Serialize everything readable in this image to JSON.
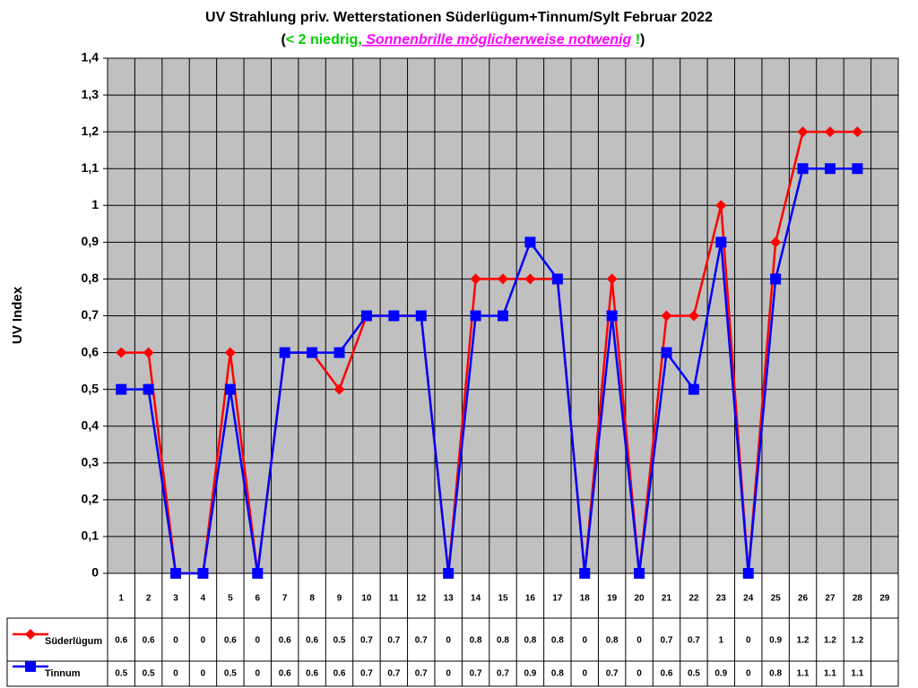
{
  "chart_data": {
    "type": "line",
    "title": "UV Strahlung priv. Wetterstationen Süderlügum+Tinnum/Sylt Februar 2022",
    "subtitle": [
      "(",
      "< 2 niedrig,",
      " Sonnenbrille möglicherweise notwenig",
      " !",
      ")"
    ],
    "y_label": "UV Index",
    "categories": [
      "1",
      "2",
      "3",
      "4",
      "5",
      "6",
      "7",
      "8",
      "9",
      "10",
      "11",
      "12",
      "13",
      "14",
      "15",
      "16",
      "17",
      "18",
      "19",
      "20",
      "21",
      "22",
      "23",
      "24",
      "25",
      "26",
      "27",
      "28",
      "29"
    ],
    "series": [
      {
        "name": "Süderlügum",
        "color": "#ff0000",
        "marker": "diamond",
        "values": [
          0.6,
          0.6,
          0,
          0,
          0.6,
          0,
          0.6,
          0.6,
          0.5,
          0.7,
          0.7,
          0.7,
          0,
          0.8,
          0.8,
          0.8,
          0.8,
          0,
          0.8,
          0,
          0.7,
          0.7,
          1,
          0,
          0.9,
          1.2,
          1.2,
          1.2,
          null
        ]
      },
      {
        "name": "Tinnum",
        "color": "#0000ff",
        "marker": "square",
        "values": [
          0.5,
          0.5,
          0,
          0,
          0.5,
          0,
          0.6,
          0.6,
          0.6,
          0.7,
          0.7,
          0.7,
          0,
          0.7,
          0.7,
          0.9,
          0.8,
          0,
          0.7,
          0,
          0.6,
          0.5,
          0.9,
          0,
          0.8,
          1.1,
          1.1,
          1.1,
          null
        ]
      }
    ],
    "ylim": [
      0,
      1.4
    ],
    "yticks": [
      0,
      {
        "value": 0.1,
        "label": "0,1"
      },
      {
        "value": 0.2,
        "label": "0,2"
      },
      {
        "value": 0.3,
        "label": "0,3"
      },
      {
        "value": 0.4,
        "label": "0,4"
      },
      {
        "value": 0.5,
        "label": "0,5"
      },
      {
        "value": 0.6,
        "label": "0,6"
      },
      {
        "value": 0.7,
        "label": "0,7"
      },
      {
        "value": 0.8,
        "label": "0,8"
      },
      {
        "value": 0.9,
        "label": "0,9"
      },
      1,
      {
        "value": 1.1,
        "label": "1,1"
      },
      {
        "value": 1.2,
        "label": "1,2"
      },
      {
        "value": 1.3,
        "label": "1,3"
      },
      {
        "value": 1.4,
        "label": "1,4"
      }
    ],
    "grid": true,
    "background": "#c0c0c0"
  }
}
